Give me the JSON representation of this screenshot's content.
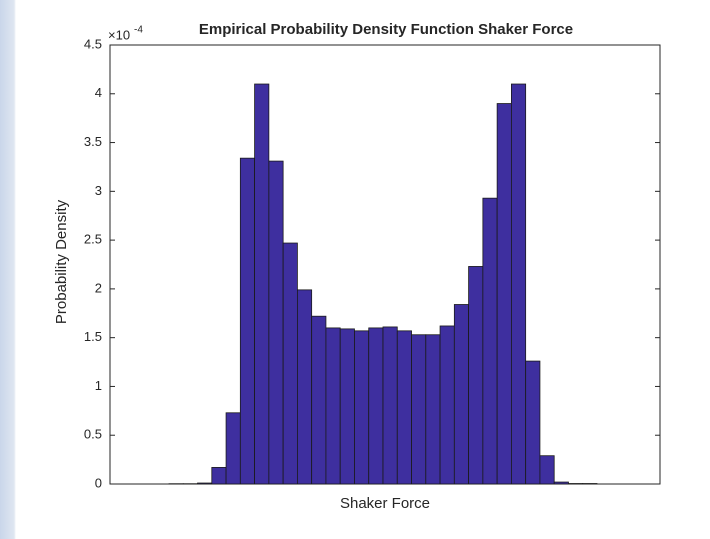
{
  "chart_data": {
    "type": "histogram",
    "title": "Empirical Probability Density Function Shaker Force",
    "x_label": "Shaker Force",
    "y_label": "Probability Density",
    "y_multiplier": "×10",
    "y_multiplier_exponent": "-4",
    "values": [
      0.003,
      0.003,
      0.01,
      0.17,
      0.73,
      3.34,
      4.1,
      3.31,
      2.47,
      1.99,
      1.72,
      1.6,
      1.59,
      1.57,
      1.6,
      1.61,
      1.57,
      1.53,
      1.53,
      1.62,
      1.84,
      2.23,
      2.93,
      3.9,
      4.1,
      1.26,
      0.29,
      0.02,
      0.005,
      0.005
    ],
    "color": "#3e2f9f",
    "ylim": [
      0,
      4.5
    ],
    "yticks": [
      0,
      0.5,
      1,
      1.5,
      2,
      2.5,
      3,
      3.5,
      4,
      4.5
    ]
  }
}
